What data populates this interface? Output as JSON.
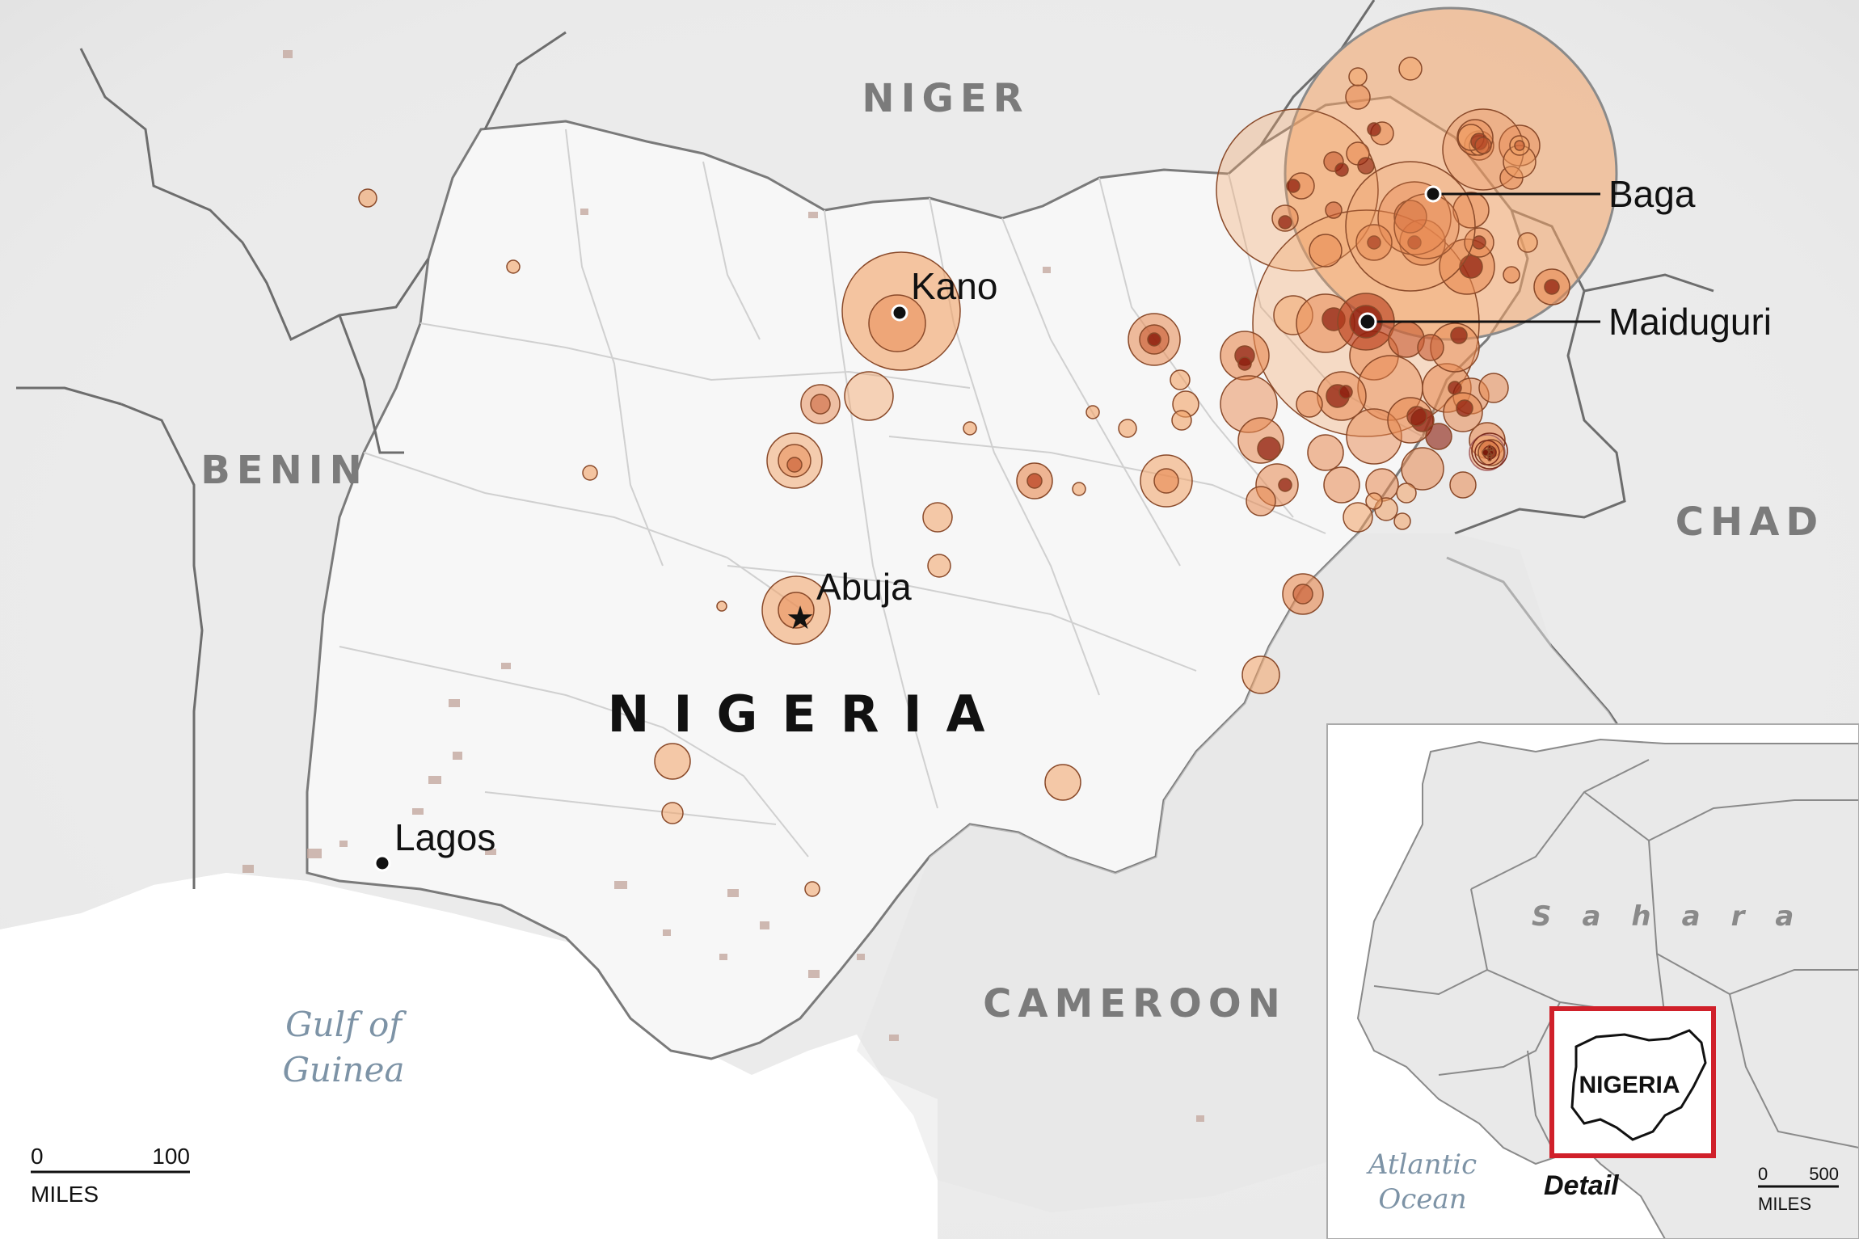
{
  "map": {
    "countries": {
      "niger": "NIGER",
      "benin": "BENIN",
      "chad": "CHAD",
      "cameroon": "CAMEROON",
      "nigeria": "NIGERIA"
    },
    "water": {
      "gulf_line1": "Gulf of",
      "gulf_line2": "Guinea"
    },
    "cities": {
      "kano": "Kano",
      "abuja": "Abuja",
      "lagos": "Lagos",
      "baga": "Baga",
      "maiduguri": "Maiduguri"
    },
    "scale": {
      "zero": "0",
      "max": "100",
      "unit": "MILES"
    },
    "colors": {
      "bubble_fill": "#f2a266",
      "bubble_core": "#b83a1a",
      "country_fill": "#f3f3f3",
      "border": "#6d6d6d",
      "water_label": "#7d93a6",
      "detail_box": "#d0202a"
    }
  },
  "inset": {
    "sahara": "Sahara",
    "ocean_line1": "Atlantic",
    "ocean_line2": "Ocean",
    "country": "NIGERIA",
    "detail": "Detail",
    "scale": {
      "zero": "0",
      "max": "500",
      "unit": "MILES"
    }
  }
}
